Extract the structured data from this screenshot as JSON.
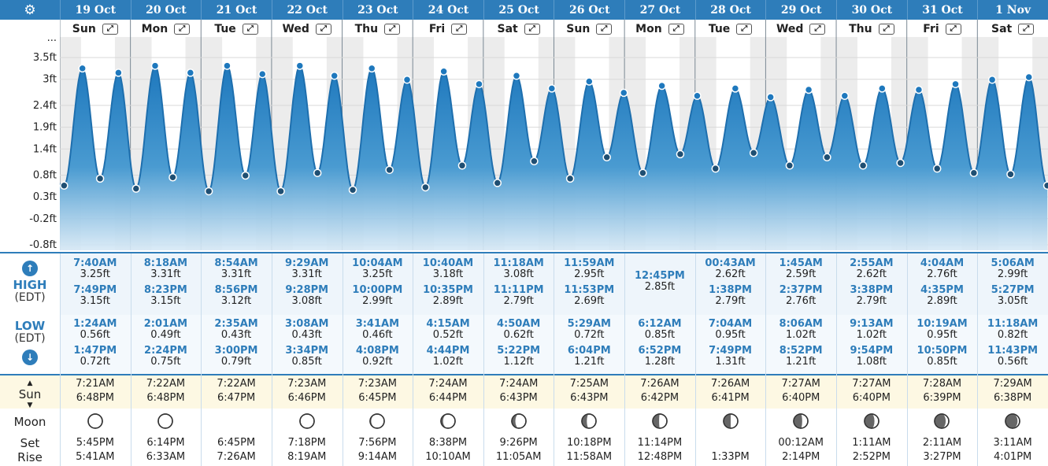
{
  "header": {
    "settings_icon": "gear-icon",
    "colors": {
      "header": "#2e7dba",
      "tide_fill": "#2e7dba",
      "high_text": "#2e7dba"
    }
  },
  "days": [
    {
      "date": "19 Oct",
      "weekday": "Sun",
      "high1_time": "7:40AM",
      "high1_height": "3.25ft",
      "high2_time": "7:49PM",
      "high2_height": "3.15ft",
      "low1_time": "1:24AM",
      "low1_height": "0.56ft",
      "low2_time": "1:47PM",
      "low2_height": "0.72ft",
      "sunrise": "7:21AM",
      "sunset": "6:48PM",
      "moon_illum": 0.95,
      "moon_waxing": false,
      "moonset": "5:45PM",
      "moonrise": "5:41AM"
    },
    {
      "date": "20 Oct",
      "weekday": "Mon",
      "high1_time": "8:18AM",
      "high1_height": "3.31ft",
      "high2_time": "8:23PM",
      "high2_height": "3.15ft",
      "low1_time": "2:01AM",
      "low1_height": "0.49ft",
      "low2_time": "2:24PM",
      "low2_height": "0.75ft",
      "sunrise": "7:22AM",
      "sunset": "6:48PM",
      "moon_illum": 1.0,
      "moon_waxing": false,
      "moonset": "6:14PM",
      "moonrise": "6:33AM"
    },
    {
      "date": "21 Oct",
      "weekday": "Tue",
      "high1_time": "8:54AM",
      "high1_height": "3.31ft",
      "high2_time": "8:56PM",
      "high2_height": "3.12ft",
      "low1_time": "2:35AM",
      "low1_height": "0.43ft",
      "low2_time": "3:00PM",
      "low2_height": "0.79ft",
      "sunrise": "7:22AM",
      "sunset": "6:47PM",
      "moon_illum": null,
      "moon_waxing": true,
      "moonset": "6:45PM",
      "moonrise": "7:26AM"
    },
    {
      "date": "22 Oct",
      "weekday": "Wed",
      "high1_time": "9:29AM",
      "high1_height": "3.31ft",
      "high2_time": "9:28PM",
      "high2_height": "3.08ft",
      "low1_time": "3:08AM",
      "low1_height": "0.43ft",
      "low2_time": "3:34PM",
      "low2_height": "0.85ft",
      "sunrise": "7:23AM",
      "sunset": "6:46PM",
      "moon_illum": 0.97,
      "moon_waxing": true,
      "moonset": "7:18PM",
      "moonrise": "8:19AM"
    },
    {
      "date": "23 Oct",
      "weekday": "Thu",
      "high1_time": "10:04AM",
      "high1_height": "3.25ft",
      "high2_time": "10:00PM",
      "high2_height": "2.99ft",
      "low1_time": "3:41AM",
      "low1_height": "0.46ft",
      "low2_time": "4:08PM",
      "low2_height": "0.92ft",
      "sunrise": "7:23AM",
      "sunset": "6:45PM",
      "moon_illum": 0.92,
      "moon_waxing": true,
      "moonset": "7:56PM",
      "moonrise": "9:14AM"
    },
    {
      "date": "24 Oct",
      "weekday": "Fri",
      "high1_time": "10:40AM",
      "high1_height": "3.18ft",
      "high2_time": "10:35PM",
      "high2_height": "2.89ft",
      "low1_time": "4:15AM",
      "low1_height": "0.52ft",
      "low2_time": "4:44PM",
      "low2_height": "1.02ft",
      "sunrise": "7:24AM",
      "sunset": "6:44PM",
      "moon_illum": 0.85,
      "moon_waxing": true,
      "moonset": "8:38PM",
      "moonrise": "10:10AM"
    },
    {
      "date": "25 Oct",
      "weekday": "Sat",
      "high1_time": "11:18AM",
      "high1_height": "3.08ft",
      "high2_time": "11:11PM",
      "high2_height": "2.79ft",
      "low1_time": "4:50AM",
      "low1_height": "0.62ft",
      "low2_time": "5:22PM",
      "low2_height": "1.12ft",
      "sunrise": "7:24AM",
      "sunset": "6:43PM",
      "moon_illum": 0.75,
      "moon_waxing": true,
      "moonset": "9:26PM",
      "moonrise": "11:05AM"
    },
    {
      "date": "26 Oct",
      "weekday": "Sun",
      "high1_time": "11:59AM",
      "high1_height": "2.95ft",
      "high2_time": "11:53PM",
      "high2_height": "2.69ft",
      "low1_time": "5:29AM",
      "low1_height": "0.72ft",
      "low2_time": "6:04PM",
      "low2_height": "1.21ft",
      "sunrise": "7:25AM",
      "sunset": "6:43PM",
      "moon_illum": 0.65,
      "moon_waxing": true,
      "moonset": "10:18PM",
      "moonrise": "11:58AM"
    },
    {
      "date": "27 Oct",
      "weekday": "Mon",
      "high1_time": "12:45PM",
      "high1_height": "2.85ft",
      "high2_time": "",
      "high2_height": "",
      "low1_time": "6:12AM",
      "low1_height": "0.85ft",
      "low2_time": "6:52PM",
      "low2_height": "1.28ft",
      "sunrise": "7:26AM",
      "sunset": "6:42PM",
      "moon_illum": 0.55,
      "moon_waxing": true,
      "moonset": "11:14PM",
      "moonrise": "12:48PM"
    },
    {
      "date": "28 Oct",
      "weekday": "Tue",
      "high1_time": "00:43AM",
      "high1_height": "2.62ft",
      "high2_time": "1:38PM",
      "high2_height": "2.79ft",
      "low1_time": "7:04AM",
      "low1_height": "0.95ft",
      "low2_time": "7:49PM",
      "low2_height": "1.31ft",
      "sunrise": "7:26AM",
      "sunset": "6:41PM",
      "moon_illum": 0.5,
      "moon_waxing": true,
      "moonset": "",
      "moonrise": "1:33PM"
    },
    {
      "date": "29 Oct",
      "weekday": "Wed",
      "high1_time": "1:45AM",
      "high1_height": "2.59ft",
      "high2_time": "2:37PM",
      "high2_height": "2.76ft",
      "low1_time": "8:06AM",
      "low1_height": "1.02ft",
      "low2_time": "8:52PM",
      "low2_height": "1.21ft",
      "sunrise": "7:27AM",
      "sunset": "6:40PM",
      "moon_illum": 0.4,
      "moon_waxing": true,
      "moonset": "00:12AM",
      "moonrise": "2:14PM"
    },
    {
      "date": "30 Oct",
      "weekday": "Thu",
      "high1_time": "2:55AM",
      "high1_height": "2.62ft",
      "high2_time": "3:38PM",
      "high2_height": "2.79ft",
      "low1_time": "9:13AM",
      "low1_height": "1.02ft",
      "low2_time": "9:54PM",
      "low2_height": "1.08ft",
      "sunrise": "7:27AM",
      "sunset": "6:40PM",
      "moon_illum": 0.3,
      "moon_waxing": true,
      "moonset": "1:11AM",
      "moonrise": "2:52PM"
    },
    {
      "date": "31 Oct",
      "weekday": "Fri",
      "high1_time": "4:04AM",
      "high1_height": "2.76ft",
      "high2_time": "4:35PM",
      "high2_height": "2.89ft",
      "low1_time": "10:19AM",
      "low1_height": "0.95ft",
      "low2_time": "10:50PM",
      "low2_height": "0.85ft",
      "sunrise": "7:28AM",
      "sunset": "6:39PM",
      "moon_illum": 0.22,
      "moon_waxing": true,
      "moonset": "2:11AM",
      "moonrise": "3:27PM"
    },
    {
      "date": "1 Nov",
      "weekday": "Sat",
      "high1_time": "5:06AM",
      "high1_height": "2.99ft",
      "high2_time": "5:27PM",
      "high2_height": "3.05ft",
      "low1_time": "11:18AM",
      "low1_height": "0.82ft",
      "low2_time": "11:43PM",
      "low2_height": "0.56ft",
      "sunrise": "7:29AM",
      "sunset": "6:38PM",
      "moon_illum": 0.15,
      "moon_waxing": true,
      "moonset": "3:11AM",
      "moonrise": "4:01PM"
    }
  ],
  "labels": {
    "high": "HIGH",
    "high_tz": "(EDT)",
    "low": "LOW",
    "low_tz": "(EDT)",
    "sun": "Sun",
    "moon": "Moon",
    "set": "Set",
    "rise": "Rise",
    "up_icon": "arrow-up-circle-icon",
    "down_icon": "arrow-down-circle-icon",
    "expand_icon": "expand-icon",
    "more": "..."
  },
  "chart_data": {
    "type": "line",
    "title": "",
    "xlabel": "",
    "ylabel": "",
    "y_ticks": [
      "3.5ft",
      "3ft",
      "2.4ft",
      "1.9ft",
      "1.4ft",
      "0.8ft",
      "0.3ft",
      "-0.2ft",
      "-0.8ft"
    ],
    "ylim": [
      -0.8,
      3.7
    ],
    "x_unit": "day index (0 = 19 Oct 00:00)",
    "series": [
      {
        "values": [
          [
            0.0,
            0.6
          ],
          [
            0.06,
            0.56
          ],
          [
            0.32,
            3.25
          ],
          [
            0.57,
            0.72
          ],
          [
            0.83,
            3.15
          ],
          [
            1.08,
            0.49
          ],
          [
            1.35,
            3.31
          ],
          [
            1.6,
            0.75
          ],
          [
            1.85,
            3.15
          ],
          [
            2.11,
            0.43
          ],
          [
            2.37,
            3.31
          ],
          [
            2.63,
            0.79
          ],
          [
            2.87,
            3.12
          ],
          [
            3.13,
            0.43
          ],
          [
            3.4,
            3.31
          ],
          [
            3.65,
            0.85
          ],
          [
            3.89,
            3.08
          ],
          [
            4.15,
            0.46
          ],
          [
            4.42,
            3.25
          ],
          [
            4.67,
            0.92
          ],
          [
            4.92,
            2.99
          ],
          [
            5.18,
            0.52
          ],
          [
            5.44,
            3.18
          ],
          [
            5.7,
            1.02
          ],
          [
            5.94,
            2.89
          ],
          [
            6.2,
            0.62
          ],
          [
            6.47,
            3.08
          ],
          [
            6.72,
            1.12
          ],
          [
            6.97,
            2.79
          ],
          [
            7.23,
            0.72
          ],
          [
            7.5,
            2.95
          ],
          [
            7.75,
            1.21
          ],
          [
            7.99,
            2.69
          ],
          [
            8.26,
            0.85
          ],
          [
            8.53,
            2.85
          ],
          [
            8.79,
            1.28
          ],
          [
            9.03,
            2.62
          ],
          [
            9.29,
            0.95
          ],
          [
            9.57,
            2.79
          ],
          [
            9.83,
            1.31
          ],
          [
            10.07,
            2.59
          ],
          [
            10.34,
            1.02
          ],
          [
            10.61,
            2.76
          ],
          [
            10.87,
            1.21
          ],
          [
            11.12,
            2.62
          ],
          [
            11.38,
            1.02
          ],
          [
            11.65,
            2.79
          ],
          [
            11.91,
            1.08
          ],
          [
            12.17,
            2.76
          ],
          [
            12.43,
            0.95
          ],
          [
            12.69,
            2.89
          ],
          [
            12.95,
            0.85
          ],
          [
            13.21,
            2.99
          ],
          [
            13.47,
            0.82
          ],
          [
            13.73,
            3.05
          ],
          [
            13.99,
            0.56
          ]
        ]
      }
    ]
  }
}
